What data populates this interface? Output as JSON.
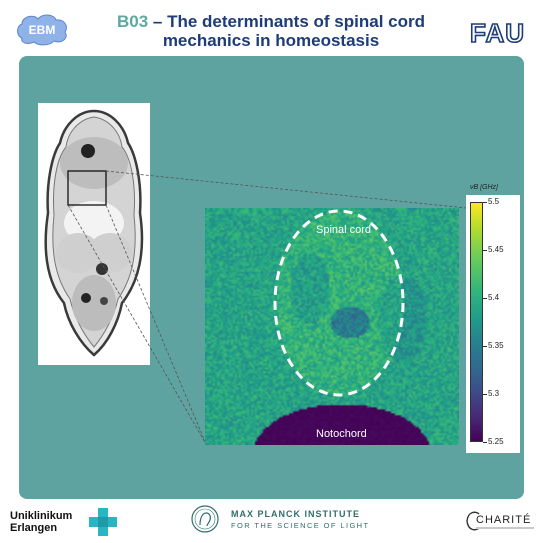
{
  "header": {
    "logo_left_text": "EBM",
    "title_code": "B03",
    "title_line1": " – The determinants of spinal cord",
    "title_line2": "mechanics in homeostasis",
    "logo_right_text": "FAU"
  },
  "figure": {
    "label_spinal_cord": "Spinal cord",
    "label_notochord": "Notochord",
    "colorbar": {
      "unit_label": "νB [GHz]",
      "min": 5.25,
      "max": 5.5,
      "ticks": [
        "5.5",
        "5.45",
        "5.4",
        "5.35",
        "5.3",
        "5.25"
      ],
      "colormap": "viridis"
    }
  },
  "footer": {
    "uniklinikum_line1": "Uniklinikum",
    "uniklinikum_line2": "Erlangen",
    "mpi_name": "MAX PLANCK INSTITUTE",
    "mpi_sub": "FOR THE SCIENCE OF LIGHT",
    "charite": "CHARITÉ"
  },
  "colors": {
    "panel": "#5ea39f",
    "title": "#1d3c78",
    "title_code": "#5fa8a1",
    "uk_cross": "#2ab5c4"
  }
}
